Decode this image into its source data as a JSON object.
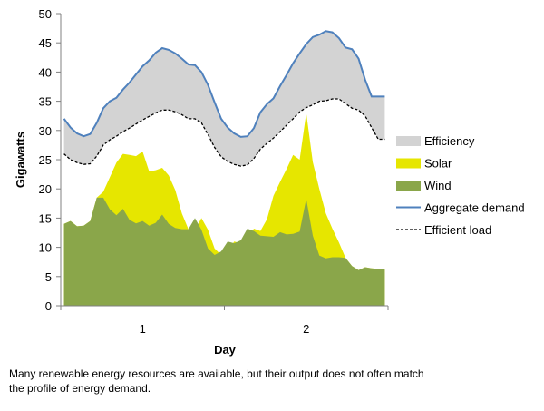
{
  "chart_data": {
    "type": "area",
    "xlabel": "Day",
    "ylabel": "Gigawatts",
    "ylim": [
      0,
      50
    ],
    "yticks": [
      0,
      5,
      10,
      15,
      20,
      25,
      30,
      35,
      40,
      45,
      50
    ],
    "xlim": [
      0.5,
      2.5
    ],
    "xticks": [
      1,
      2
    ],
    "x": [
      0.52,
      0.56,
      0.6,
      0.64,
      0.68,
      0.72,
      0.76,
      0.8,
      0.84,
      0.88,
      0.92,
      0.96,
      1.0,
      1.04,
      1.08,
      1.12,
      1.16,
      1.2,
      1.24,
      1.28,
      1.32,
      1.36,
      1.4,
      1.44,
      1.48,
      1.52,
      1.56,
      1.6,
      1.64,
      1.68,
      1.72,
      1.76,
      1.8,
      1.84,
      1.88,
      1.92,
      1.96,
      2.0,
      2.04,
      2.08,
      2.12,
      2.16,
      2.2,
      2.24,
      2.28,
      2.32,
      2.36,
      2.4,
      2.44,
      2.48
    ],
    "series": [
      {
        "name": "Efficiency",
        "kind": "band",
        "color": "#d3d3d3"
      },
      {
        "name": "Solar",
        "kind": "area",
        "color": "#e6e600",
        "values": [
          14,
          14.5,
          13.6,
          13.7,
          14.5,
          18.5,
          19.5,
          22,
          24.5,
          26,
          25.8,
          25.6,
          26.4,
          23,
          23.2,
          23.6,
          22.3,
          19.8,
          15.8,
          13.1,
          13,
          15,
          13,
          9.8,
          8.7,
          9.3,
          11,
          10.7,
          11.2,
          13.2,
          12.8,
          14.8,
          18.8,
          21.2,
          23.4,
          25.8,
          25,
          33,
          24.6,
          20,
          15.8,
          13.2,
          10.8,
          8.2,
          6.8,
          6.1,
          6.6,
          6.4,
          6.3,
          6.2
        ]
      },
      {
        "name": "Wind",
        "kind": "area",
        "color": "#8aa64a",
        "values": [
          14,
          14.5,
          13.6,
          13.7,
          14.5,
          18.5,
          18.5,
          16.5,
          15.5,
          16.6,
          14.7,
          14.1,
          14.5,
          13.7,
          14.2,
          15.6,
          14,
          13.3,
          13.1,
          13.1,
          15,
          13,
          9.8,
          8.7,
          9.3,
          11,
          10.7,
          11.2,
          13.2,
          12.8,
          12,
          11.9,
          11.8,
          12.6,
          12.2,
          12.3,
          12.7,
          18.3,
          12,
          8.6,
          8.1,
          8.3,
          8.3,
          8.2,
          6.8,
          6.1,
          6.6,
          6.4,
          6.3,
          6.2
        ]
      },
      {
        "name": "Aggregate demand",
        "kind": "line",
        "color": "#4f81bd",
        "values": [
          32,
          30.5,
          29.5,
          29,
          29.4,
          31.3,
          33.8,
          35,
          35.6,
          37,
          38.2,
          39.6,
          41,
          42,
          43.3,
          44.1,
          43.8,
          43.2,
          42.3,
          41.3,
          41.2,
          40,
          37.8,
          34.8,
          32,
          30.5,
          29.5,
          28.9,
          29,
          30.4,
          33.1,
          34.5,
          35.5,
          37.6,
          39.5,
          41.5,
          43.2,
          44.8,
          46,
          46.4,
          47,
          46.8,
          45.8,
          44.2,
          43.9,
          42.3,
          38.7,
          35.8,
          35.8,
          35.8
        ]
      },
      {
        "name": "Efficient load",
        "kind": "line",
        "dashed": true,
        "color": "#000000",
        "values": [
          26,
          25,
          24.5,
          24.2,
          24.3,
          25.6,
          27.5,
          28.4,
          29,
          29.8,
          30.4,
          31.1,
          31.8,
          32.4,
          33,
          33.5,
          33.5,
          33.2,
          32.7,
          32,
          32,
          31.3,
          29.3,
          27.1,
          25.5,
          24.7,
          24.2,
          23.9,
          24.1,
          25.2,
          26.8,
          27.8,
          28.7,
          29.8,
          30.9,
          32,
          33.2,
          33.9,
          34.4,
          35,
          35.1,
          35.4,
          35.4,
          34.6,
          33.8,
          33.5,
          32.5,
          30.5,
          28.5,
          28.5
        ]
      }
    ],
    "legend": {
      "position": "right",
      "entries": [
        {
          "label": "Efficiency",
          "symbol": "box",
          "color": "#d3d3d3"
        },
        {
          "label": "Solar",
          "symbol": "box",
          "color": "#e6e600"
        },
        {
          "label": "Wind",
          "symbol": "box",
          "color": "#8aa64a"
        },
        {
          "label": "Aggregate demand",
          "symbol": "line",
          "color": "#4f81bd"
        },
        {
          "label": "Efficient load",
          "symbol": "dash",
          "color": "#000000"
        }
      ]
    },
    "grid": false
  },
  "caption": "Many renewable energy resources are available, but their output does not often match the profile of energy demand."
}
